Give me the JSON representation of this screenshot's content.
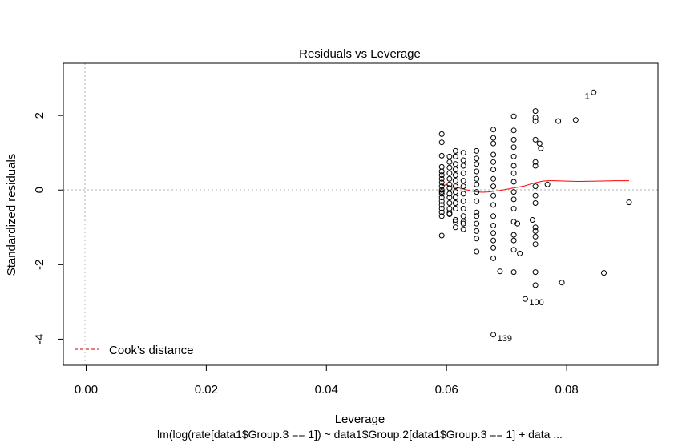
{
  "chart_data": {
    "type": "scatter",
    "title": "Residuals vs Leverage",
    "xlabel": "Leverage",
    "ylabel": "Standardized residuals",
    "subtitle": "lm(log(rate[data1$Group.3 == 1]) ~ data1$Group.2[data1$Group.3 == 1] + data ...",
    "xlim": [
      -0.0038,
      0.0952
    ],
    "ylim": [
      -4.7,
      3.4
    ],
    "xticks": [
      "0.00",
      "0.02",
      "0.04",
      "0.06",
      "0.08"
    ],
    "yticks": [
      "-4",
      "-2",
      "0",
      "2"
    ],
    "grid": false,
    "reference_lines": {
      "x": 0,
      "y": 0
    },
    "legend": {
      "position": "bottom-left",
      "entries": [
        "Cook's distance"
      ]
    },
    "colors": {
      "points": "#000000",
      "smooth": "#ff0000",
      "cook": "#cc0000",
      "reference": "#b0b0b0"
    },
    "series": [
      {
        "name": "",
        "x": [
          0.0592,
          0.0592,
          0.0592,
          0.0592,
          0.0592,
          0.0592,
          0.0592,
          0.0592,
          0.0592,
          0.0592,
          0.0592,
          0.0592,
          0.0592,
          0.0592,
          0.0592,
          0.0592,
          0.0592,
          0.0592,
          0.0592,
          0.0605,
          0.0605,
          0.0605,
          0.0605,
          0.0605,
          0.0605,
          0.0605,
          0.0605,
          0.0605,
          0.0605,
          0.0605,
          0.0605,
          0.0605,
          0.0615,
          0.0615,
          0.0615,
          0.0615,
          0.0615,
          0.0615,
          0.0615,
          0.0615,
          0.0615,
          0.0615,
          0.0615,
          0.0615,
          0.0615,
          0.0615,
          0.0628,
          0.0628,
          0.0628,
          0.0628,
          0.0628,
          0.0628,
          0.0628,
          0.0628,
          0.0628,
          0.0628,
          0.0628,
          0.0628,
          0.0628,
          0.065,
          0.065,
          0.065,
          0.065,
          0.065,
          0.065,
          0.065,
          0.065,
          0.065,
          0.065,
          0.065,
          0.065,
          0.065,
          0.065,
          0.0678,
          0.0678,
          0.0678,
          0.0678,
          0.0678,
          0.0678,
          0.0678,
          0.0678,
          0.0678,
          0.0678,
          0.0678,
          0.0678,
          0.0678,
          0.0678,
          0.0678,
          0.0678,
          0.0712,
          0.0712,
          0.0712,
          0.0712,
          0.0712,
          0.0712,
          0.0712,
          0.0712,
          0.0712,
          0.0712,
          0.0712,
          0.0712,
          0.0712,
          0.0712,
          0.0712,
          0.0712,
          0.0748,
          0.0748,
          0.0748,
          0.0748,
          0.0748,
          0.0748,
          0.0748,
          0.0748,
          0.0748,
          0.0748,
          0.0748,
          0.0748,
          0.0748,
          0.0748,
          0.0748,
          0.0845,
          0.0786,
          0.0815,
          0.0757,
          0.0768,
          0.0755,
          0.0792,
          0.0862,
          0.0904,
          0.0731,
          0.0678,
          0.0722,
          0.0743,
          0.0718,
          0.0689
        ],
        "y": [
          1.5,
          1.28,
          0.92,
          0.62,
          0.5,
          0.4,
          0.3,
          0.2,
          0.1,
          0.0,
          -0.05,
          -0.1,
          -0.2,
          -0.3,
          -0.4,
          -0.5,
          -0.6,
          -0.7,
          -1.22,
          0.9,
          0.75,
          0.6,
          0.45,
          0.3,
          0.15,
          0.05,
          -0.1,
          -0.2,
          -0.35,
          -0.5,
          -0.62,
          -0.65,
          1.05,
          0.9,
          0.7,
          0.55,
          0.4,
          0.25,
          0.1,
          -0.05,
          -0.2,
          -0.35,
          -0.5,
          -0.8,
          -0.85,
          -1.0,
          1.0,
          0.8,
          0.65,
          0.45,
          0.25,
          0.1,
          -0.1,
          -0.3,
          -0.5,
          -0.7,
          -0.85,
          -0.9,
          -1.05,
          1.05,
          0.85,
          0.7,
          0.5,
          0.3,
          0.15,
          -0.05,
          -0.3,
          -0.6,
          -0.7,
          -0.9,
          -1.1,
          -1.3,
          -1.65,
          1.62,
          1.4,
          1.25,
          0.95,
          0.75,
          0.55,
          0.3,
          0.1,
          -0.15,
          -0.4,
          -0.7,
          -0.95,
          -1.15,
          -1.35,
          -1.55,
          -1.83,
          1.98,
          1.6,
          1.35,
          1.15,
          0.9,
          0.65,
          0.45,
          0.22,
          -0.05,
          -0.25,
          -0.5,
          -0.85,
          -1.2,
          -1.35,
          -1.6,
          -2.2,
          2.12,
          1.95,
          1.85,
          1.35,
          0.75,
          0.65,
          0.1,
          -0.15,
          -0.35,
          -1.0,
          -1.1,
          -1.25,
          -1.45,
          -2.2,
          -2.55,
          2.62,
          1.85,
          1.88,
          1.12,
          0.15,
          1.25,
          -2.48,
          -2.22,
          -0.33,
          -2.92,
          -3.88,
          -1.7,
          -0.8,
          -0.9,
          -2.18
        ]
      }
    ],
    "smooth_line": {
      "name": "",
      "x": [
        0.0592,
        0.06,
        0.061,
        0.062,
        0.063,
        0.064,
        0.065,
        0.066,
        0.067,
        0.068,
        0.069,
        0.07,
        0.071,
        0.072,
        0.073,
        0.074,
        0.075,
        0.076,
        0.077,
        0.078,
        0.08,
        0.082,
        0.085,
        0.088,
        0.0904
      ],
      "y": [
        0.12,
        0.14,
        0.08,
        0.06,
        0.02,
        -0.02,
        -0.05,
        -0.06,
        -0.05,
        -0.03,
        -0.01,
        0.02,
        0.05,
        0.08,
        0.11,
        0.16,
        0.2,
        0.24,
        0.25,
        0.25,
        0.24,
        0.23,
        0.24,
        0.25,
        0.25
      ]
    },
    "annotations": [
      {
        "label": "1",
        "x": 0.0845,
        "y": 2.62,
        "side": "left"
      },
      {
        "label": "100",
        "x": 0.0731,
        "y": -2.92,
        "side": "right"
      },
      {
        "label": "139",
        "x": 0.0678,
        "y": -3.88,
        "side": "right"
      }
    ]
  }
}
